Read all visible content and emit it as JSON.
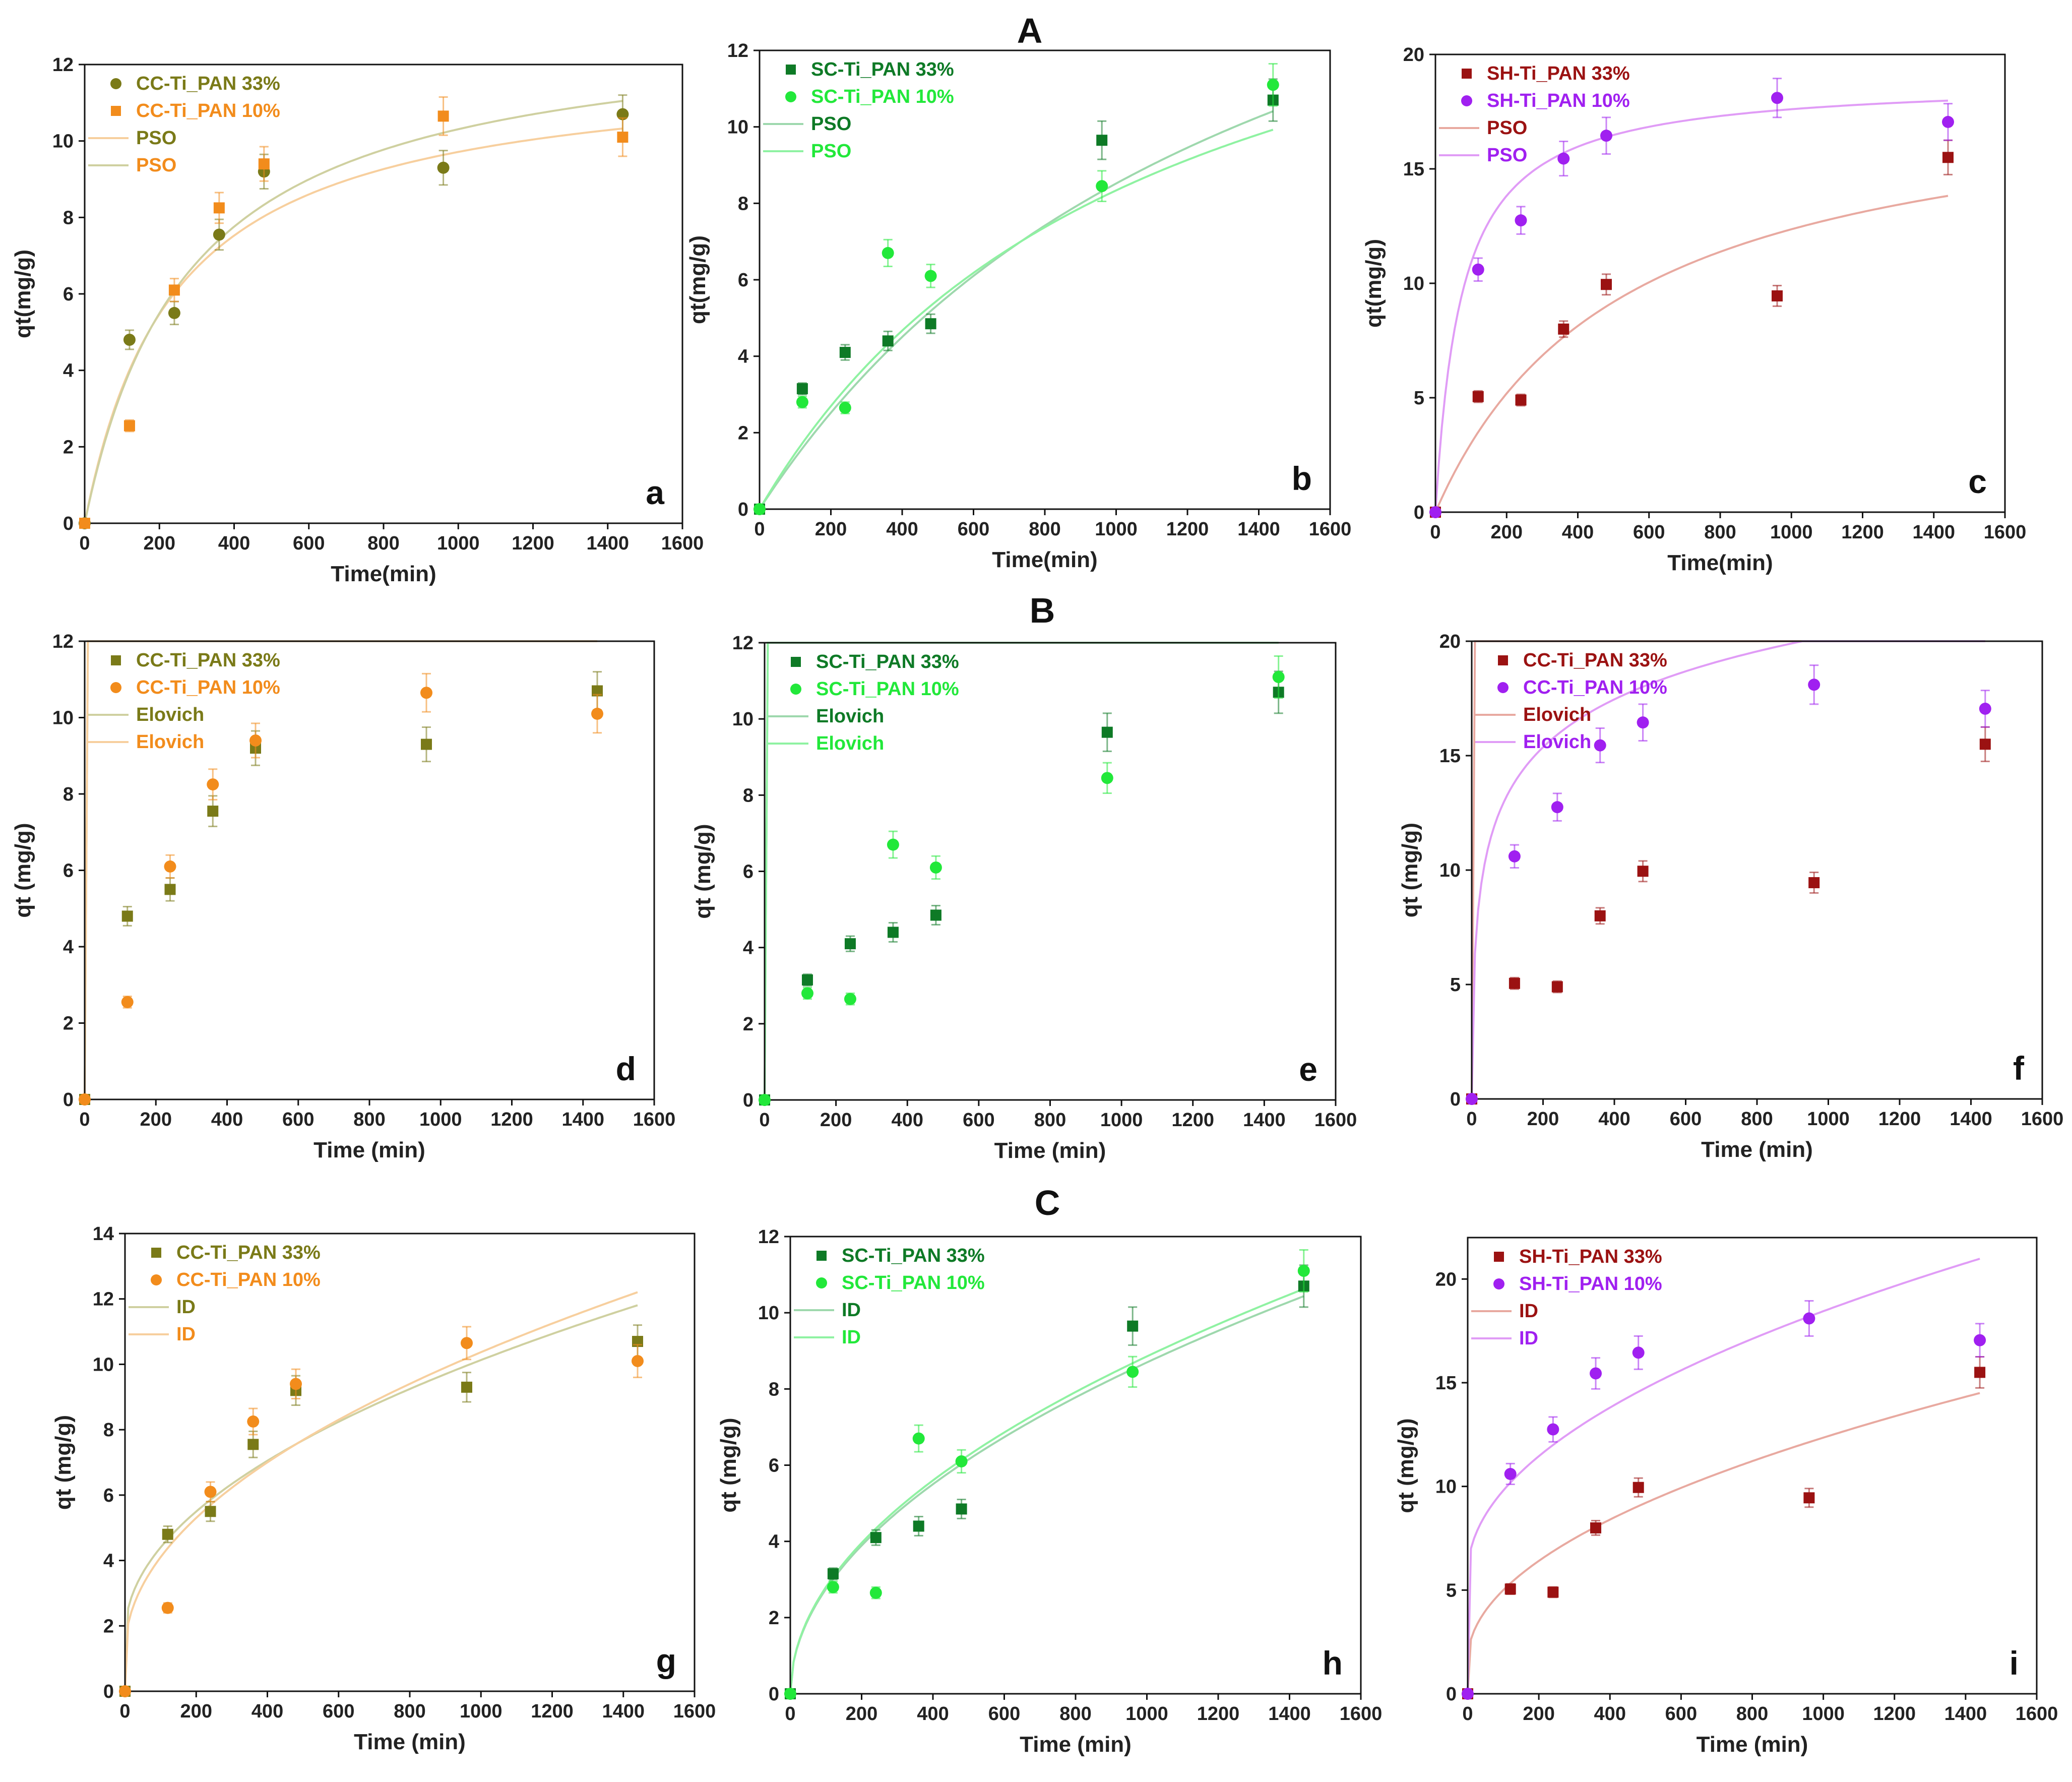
{
  "figure": {
    "row_labels": [
      "A",
      "B",
      "C"
    ],
    "colors": {
      "CC_33": "#7a7a18",
      "CC_10": "#f28c1c",
      "CC_fit_33": "#cfd0a0",
      "CC_fit_10": "#f7cf9e",
      "SC_33": "#0e7a26",
      "SC_10": "#22e83a",
      "SC_fit_33": "#9ed8ad",
      "SC_fit_10": "#8ff2a2",
      "SH_33": "#9b1212",
      "SH_10": "#a020f0",
      "SH_fit_33": "#e8a9a0",
      "SH_fit_10": "#e09cf6"
    }
  },
  "chart_data": [
    {
      "panel": "a",
      "row": "A",
      "type": "scatter",
      "xlabel": "Time(min)",
      "ylabel": "qt(mg/g)",
      "xlim": [
        0,
        1600
      ],
      "ylim": [
        0,
        12
      ],
      "xticks": [
        0,
        200,
        400,
        600,
        800,
        1000,
        1200,
        1400,
        1600
      ],
      "yticks": [
        0,
        2,
        4,
        6,
        8,
        10,
        12
      ],
      "legend": [
        "CC-Ti_PAN 33%",
        "CC-Ti_PAN 10%",
        "PSO",
        "PSO"
      ],
      "series": [
        {
          "name": "CC-Ti_PAN 33%",
          "color_key": "CC_33",
          "marker": "circle",
          "x": [
            0,
            120,
            240,
            360,
            480,
            960,
            1440
          ],
          "y": [
            0,
            4.8,
            5.5,
            7.55,
            9.2,
            9.3,
            10.7
          ],
          "err": [
            0,
            0.25,
            0.3,
            0.4,
            0.45,
            0.45,
            0.5
          ]
        },
        {
          "name": "CC-Ti_PAN 10%",
          "color_key": "CC_10",
          "marker": "square",
          "x": [
            0,
            120,
            240,
            360,
            480,
            960,
            1440
          ],
          "y": [
            0,
            2.55,
            6.1,
            8.25,
            9.4,
            10.65,
            10.1
          ],
          "err": [
            0,
            0.15,
            0.3,
            0.4,
            0.45,
            0.5,
            0.5
          ]
        }
      ],
      "fits": [
        {
          "model": "PSO",
          "color_key": "CC_fit_10",
          "qe": 12.05,
          "k": 0.000345
        },
        {
          "model": "PSO",
          "color_key": "CC_fit_33",
          "qe": 13.2,
          "k": 0.00027
        }
      ]
    },
    {
      "panel": "b",
      "row": "A",
      "type": "scatter",
      "xlabel": "Time(min)",
      "ylabel": "qt(mg/g)",
      "xlim": [
        0,
        1600
      ],
      "ylim": [
        0,
        12
      ],
      "xticks": [
        0,
        200,
        400,
        600,
        800,
        1000,
        1200,
        1400,
        1600
      ],
      "yticks": [
        0,
        2,
        4,
        6,
        8,
        10,
        12
      ],
      "legend": [
        "SC-Ti_PAN 33%",
        "SC-Ti_PAN 10%",
        "PSO",
        "PSO"
      ],
      "series": [
        {
          "name": "SC-Ti_PAN 33%",
          "color_key": "SC_33",
          "marker": "square",
          "x": [
            0,
            120,
            240,
            360,
            480,
            960,
            1440
          ],
          "y": [
            0,
            3.15,
            4.1,
            4.4,
            4.85,
            9.65,
            10.7
          ],
          "err": [
            0,
            0.15,
            0.2,
            0.25,
            0.25,
            0.5,
            0.55
          ]
        },
        {
          "name": "SC-Ti_PAN 10%",
          "color_key": "SC_10",
          "marker": "circle",
          "x": [
            0,
            120,
            240,
            360,
            480,
            960,
            1440
          ],
          "y": [
            0,
            2.8,
            2.65,
            6.7,
            6.1,
            8.45,
            11.1
          ],
          "err": [
            0,
            0.15,
            0.15,
            0.35,
            0.3,
            0.4,
            0.55
          ]
        }
      ],
      "fits": [
        {
          "model": "PSO",
          "color_key": "SC_fit_33",
          "qe": 21.0,
          "k": 3.25e-05
        },
        {
          "model": "PSO",
          "color_key": "SC_fit_10",
          "qe": 17.5,
          "k": 5.2e-05
        }
      ]
    },
    {
      "panel": "c",
      "row": "A",
      "type": "scatter",
      "xlabel": "Time(min)",
      "ylabel": "qt(mg/g)",
      "xlim": [
        0,
        1600
      ],
      "ylim": [
        0,
        20
      ],
      "xticks": [
        0,
        200,
        400,
        600,
        800,
        1000,
        1200,
        1400,
        1600
      ],
      "yticks": [
        0,
        5,
        10,
        15,
        20
      ],
      "legend": [
        "SH-Ti_PAN 33%",
        "SH-Ti_PAN 10%",
        "PSO",
        "PSO"
      ],
      "series": [
        {
          "name": "SH-Ti_PAN 33%",
          "color_key": "SH_33",
          "marker": "square",
          "x": [
            0,
            120,
            240,
            360,
            480,
            960,
            1440
          ],
          "y": [
            0,
            5.05,
            4.9,
            8.0,
            9.95,
            9.45,
            15.5
          ],
          "err": [
            0,
            0.25,
            0.25,
            0.35,
            0.45,
            0.45,
            0.75
          ]
        },
        {
          "name": "SH-Ti_PAN 10%",
          "color_key": "SH_10",
          "marker": "circle",
          "x": [
            0,
            120,
            240,
            360,
            480,
            960,
            1440
          ],
          "y": [
            0,
            10.6,
            12.75,
            15.45,
            16.45,
            18.1,
            17.05
          ],
          "err": [
            0,
            0.5,
            0.6,
            0.75,
            0.8,
            0.85,
            0.8
          ]
        }
      ],
      "fits": [
        {
          "model": "PSO",
          "color_key": "SH_fit_33",
          "qe": 18.9,
          "k": 0.0001
        },
        {
          "model": "PSO",
          "color_key": "SH_fit_10",
          "qe": 18.9,
          "k": 0.00072
        }
      ]
    },
    {
      "panel": "d",
      "row": "B",
      "type": "scatter",
      "xlabel": "Time (min)",
      "ylabel": "qt (mg/g)",
      "xlim": [
        0,
        1600
      ],
      "ylim": [
        0,
        12
      ],
      "xticks": [
        0,
        200,
        400,
        600,
        800,
        1000,
        1200,
        1400,
        1600
      ],
      "yticks": [
        0,
        2,
        4,
        6,
        8,
        10,
        12
      ],
      "legend": [
        "CC-Ti_PAN 33%",
        "CC-Ti_PAN 10%",
        "Elovich",
        "Elovich"
      ],
      "series": [
        {
          "name": "CC-Ti_PAN 33%",
          "color_key": "CC_33",
          "marker": "square",
          "x": [
            0,
            120,
            240,
            360,
            480,
            960,
            1440
          ],
          "y": [
            0,
            4.8,
            5.5,
            7.55,
            9.2,
            9.3,
            10.7
          ],
          "err": [
            0,
            0.25,
            0.3,
            0.4,
            0.45,
            0.45,
            0.5
          ]
        },
        {
          "name": "CC-Ti_PAN 10%",
          "color_key": "CC_10",
          "marker": "circle",
          "x": [
            0,
            120,
            240,
            360,
            480,
            960,
            1440
          ],
          "y": [
            0,
            2.55,
            6.1,
            8.25,
            9.4,
            10.65,
            10.1
          ],
          "err": [
            0,
            0.15,
            0.3,
            0.4,
            0.45,
            0.5,
            0.5
          ]
        }
      ],
      "fits": [
        {
          "model": "Elovich",
          "color_key": "CC_fit_33",
          "a": 2.3,
          "b": 0.03
        },
        {
          "model": "Elovich",
          "color_key": "CC_fit_10",
          "a": 2.8,
          "b": 0.015
        }
      ]
    },
    {
      "panel": "e",
      "row": "B",
      "type": "scatter",
      "xlabel": "Time (min)",
      "ylabel": "qt (mg/g)",
      "xlim": [
        0,
        1600
      ],
      "ylim": [
        0,
        12
      ],
      "xticks": [
        0,
        200,
        400,
        600,
        800,
        1000,
        1200,
        1400,
        1600
      ],
      "yticks": [
        0,
        2,
        4,
        6,
        8,
        10,
        12
      ],
      "legend": [
        "SC-Ti_PAN 33%",
        "SC-Ti_PAN 10%",
        "Elovich",
        "Elovich"
      ],
      "series": [
        {
          "name": "SC-Ti_PAN 33%",
          "color_key": "SC_33",
          "marker": "square",
          "x": [
            0,
            120,
            240,
            360,
            480,
            960,
            1440
          ],
          "y": [
            0,
            3.15,
            4.1,
            4.4,
            4.85,
            9.65,
            10.7
          ],
          "err": [
            0,
            0.15,
            0.2,
            0.25,
            0.25,
            0.5,
            0.55
          ]
        },
        {
          "name": "SC-Ti_PAN 10%",
          "color_key": "SC_10",
          "marker": "circle",
          "x": [
            0,
            120,
            240,
            360,
            480,
            960,
            1440
          ],
          "y": [
            0,
            2.8,
            2.65,
            6.7,
            6.1,
            8.45,
            11.1
          ],
          "err": [
            0,
            0.15,
            0.15,
            0.35,
            0.3,
            0.4,
            0.55
          ]
        }
      ],
      "fits": [
        {
          "model": "Elovich",
          "color_key": "SC_fit_33",
          "a": 18.0,
          "b": 0.00085
        },
        {
          "model": "Elovich",
          "color_key": "SC_fit_10",
          "a": 15.0,
          "b": 0.00118
        }
      ]
    },
    {
      "panel": "f",
      "row": "B",
      "type": "scatter",
      "xlabel": "Time (min)",
      "ylabel": "qt (mg/g)",
      "xlim": [
        0,
        1600
      ],
      "ylim": [
        0,
        20
      ],
      "xticks": [
        0,
        200,
        400,
        600,
        800,
        1000,
        1200,
        1400,
        1600
      ],
      "yticks": [
        0,
        5,
        10,
        15,
        20
      ],
      "legend": [
        "CC-Ti_PAN 33%",
        "CC-Ti_PAN 10%",
        "Elovich",
        "Elovich"
      ],
      "series": [
        {
          "name": "CC-Ti_PAN 33%",
          "color_key": "SH_33",
          "marker": "square",
          "x": [
            0,
            120,
            240,
            360,
            480,
            960,
            1440
          ],
          "y": [
            0,
            5.05,
            4.9,
            8.0,
            9.95,
            9.45,
            15.5
          ],
          "err": [
            0,
            0.25,
            0.25,
            0.35,
            0.45,
            0.45,
            0.75
          ]
        },
        {
          "name": "CC-Ti_PAN 10%",
          "color_key": "SH_10",
          "marker": "circle",
          "x": [
            0,
            120,
            240,
            360,
            480,
            960,
            1440
          ],
          "y": [
            0,
            10.6,
            12.75,
            15.45,
            16.45,
            18.1,
            17.05
          ],
          "err": [
            0,
            0.5,
            0.6,
            0.75,
            0.8,
            0.85,
            0.8
          ]
        }
      ],
      "fits": [
        {
          "model": "Elovich",
          "color_key": "SH_fit_33",
          "a": 5.0,
          "b": 0.0085
        },
        {
          "model": "Elovich",
          "color_key": "SH_fit_10",
          "a": 2.4,
          "b": 0.33
        }
      ]
    },
    {
      "panel": "g",
      "row": "C",
      "type": "scatter",
      "xlabel": "Time (min)",
      "ylabel": "qt (mg/g)",
      "xlim": [
        0,
        1600
      ],
      "ylim": [
        0,
        14
      ],
      "xticks": [
        0,
        200,
        400,
        600,
        800,
        1000,
        1200,
        1400,
        1600
      ],
      "yticks": [
        0,
        2,
        4,
        6,
        8,
        10,
        12,
        14
      ],
      "legend": [
        "CC-Ti_PAN 33%",
        "CC-Ti_PAN 10%",
        "ID",
        "ID"
      ],
      "series": [
        {
          "name": "CC-Ti_PAN 33%",
          "color_key": "CC_33",
          "marker": "square",
          "x": [
            0,
            120,
            240,
            360,
            480,
            960,
            1440
          ],
          "y": [
            0,
            4.8,
            5.5,
            7.55,
            9.2,
            9.3,
            10.7
          ],
          "err": [
            0,
            0.25,
            0.3,
            0.4,
            0.45,
            0.45,
            0.5
          ]
        },
        {
          "name": "CC-Ti_PAN 10%",
          "color_key": "CC_10",
          "marker": "circle",
          "x": [
            0,
            120,
            240,
            360,
            480,
            960,
            1440
          ],
          "y": [
            0,
            2.55,
            6.1,
            8.25,
            9.4,
            10.65,
            10.1
          ],
          "err": [
            0,
            0.15,
            0.3,
            0.4,
            0.45,
            0.5,
            0.5
          ]
        }
      ],
      "fits": [
        {
          "model": "ID",
          "color_key": "CC_fit_33",
          "kid": 0.265,
          "c": 1.75
        },
        {
          "model": "ID",
          "color_key": "CC_fit_10",
          "kid": 0.29,
          "c": 1.2
        }
      ]
    },
    {
      "panel": "h",
      "row": "C",
      "type": "scatter",
      "xlabel": "Time (min)",
      "ylabel": "qt (mg/g)",
      "xlim": [
        0,
        1600
      ],
      "ylim": [
        0,
        12
      ],
      "xticks": [
        0,
        200,
        400,
        600,
        800,
        1000,
        1200,
        1400,
        1600
      ],
      "yticks": [
        0,
        2,
        4,
        6,
        8,
        10,
        12
      ],
      "legend": [
        "SC-Ti_PAN 33%",
        "SC-Ti_PAN 10%",
        "ID",
        "ID"
      ],
      "series": [
        {
          "name": "SC-Ti_PAN 33%",
          "color_key": "SC_33",
          "marker": "square",
          "x": [
            0,
            120,
            240,
            360,
            480,
            960,
            1440
          ],
          "y": [
            0,
            3.15,
            4.1,
            4.4,
            4.85,
            9.65,
            10.7
          ],
          "err": [
            0,
            0.15,
            0.2,
            0.25,
            0.25,
            0.5,
            0.55
          ]
        },
        {
          "name": "SC-Ti_PAN 10%",
          "color_key": "SC_10",
          "marker": "circle",
          "x": [
            0,
            120,
            240,
            360,
            480,
            960,
            1440
          ],
          "y": [
            0,
            2.8,
            2.65,
            6.7,
            6.1,
            8.45,
            11.1
          ],
          "err": [
            0,
            0.15,
            0.15,
            0.35,
            0.3,
            0.4,
            0.55
          ]
        }
      ],
      "fits": [
        {
          "model": "ID",
          "color_key": "SC_fit_33",
          "kid": 0.275,
          "c": 0.0
        },
        {
          "model": "ID",
          "color_key": "SC_fit_10",
          "kid": 0.28,
          "c": 0.0
        }
      ]
    },
    {
      "panel": "i",
      "row": "C",
      "type": "scatter",
      "xlabel": "Time (min)",
      "ylabel": "qt (mg/g)",
      "xlim": [
        0,
        1600
      ],
      "ylim": [
        0,
        22
      ],
      "xticks": [
        0,
        200,
        400,
        600,
        800,
        1000,
        1200,
        1400,
        1600
      ],
      "yticks": [
        0,
        5,
        10,
        15,
        20
      ],
      "legend": [
        "SH-Ti_PAN 33%",
        "SH-Ti_PAN 10%",
        "ID",
        "ID"
      ],
      "series": [
        {
          "name": "SH-Ti_PAN 33%",
          "color_key": "SH_33",
          "marker": "square",
          "x": [
            0,
            120,
            240,
            360,
            480,
            960,
            1440
          ],
          "y": [
            0,
            5.05,
            4.9,
            8.0,
            9.95,
            9.45,
            15.5
          ],
          "err": [
            0,
            0.25,
            0.25,
            0.35,
            0.45,
            0.45,
            0.75
          ]
        },
        {
          "name": "SH-Ti_PAN 10%",
          "color_key": "SH_10",
          "marker": "circle",
          "x": [
            0,
            120,
            240,
            360,
            480,
            960,
            1440
          ],
          "y": [
            0,
            10.6,
            12.75,
            15.45,
            16.45,
            18.1,
            17.05
          ],
          "err": [
            0,
            0.5,
            0.6,
            0.75,
            0.8,
            0.85,
            0.8
          ]
        }
      ],
      "fits": [
        {
          "model": "ID",
          "color_key": "SH_fit_33",
          "kid": 0.34,
          "c": 1.6
        },
        {
          "model": "ID",
          "color_key": "SH_fit_10",
          "kid": 0.4,
          "c": 5.8
        }
      ]
    }
  ]
}
